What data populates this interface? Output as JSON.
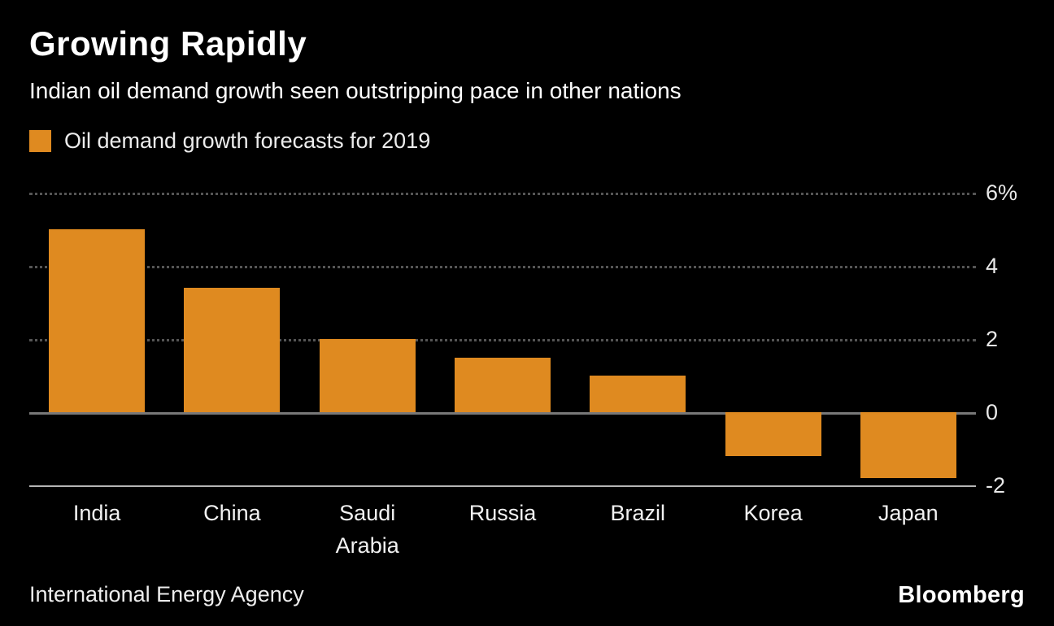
{
  "header": {
    "title": "Growing Rapidly",
    "subtitle": "Indian oil demand growth seen outstripping pace in other nations"
  },
  "legend": {
    "label": "Oil demand growth forecasts for 2019",
    "swatch_color": "#DF8A20"
  },
  "source": "International Energy Agency",
  "brand": "Bloomberg",
  "chart_data": {
    "type": "bar",
    "title": "Growing Rapidly",
    "subtitle": "Indian oil demand growth seen outstripping pace in other nations",
    "series_name": "Oil demand growth forecasts for 2019",
    "categories": [
      "India",
      "China",
      "Saudi\nArabia",
      "Russia",
      "Brazil",
      "Korea",
      "Japan"
    ],
    "values": [
      5.0,
      3.4,
      2.0,
      1.5,
      1.0,
      -1.2,
      -1.8
    ],
    "unit": "%",
    "ylim": [
      -2,
      6
    ],
    "yticks": [
      {
        "value": 6,
        "label": "6%",
        "style": "dotted"
      },
      {
        "value": 4,
        "label": "4",
        "style": "dotted"
      },
      {
        "value": 2,
        "label": "2",
        "style": "dotted"
      },
      {
        "value": 0,
        "label": "0",
        "style": "solid-zero"
      },
      {
        "value": -2,
        "label": "-2",
        "style": "solid-axis"
      }
    ],
    "bar_color": "#DF8A20",
    "grid": true,
    "legend_position": "top-left",
    "background_color": "#000000"
  }
}
